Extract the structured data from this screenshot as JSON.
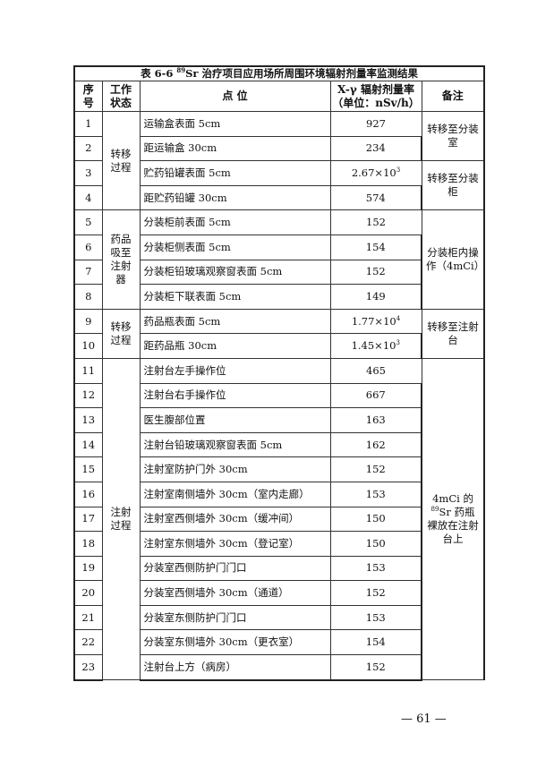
{
  "table": {
    "title_prefix": "表 6-6 ",
    "title_sup": "89",
    "title_rest": "Sr 治疗项目应用场所周围环境辐射剂量率监测结果",
    "headers": {
      "no": "序号",
      "status": "工作状态",
      "point": "点 位",
      "rate_line1": "X-γ 辐射剂量率",
      "rate_line2": "（单位：nSv/h）",
      "remark": "备注"
    },
    "rows": [
      {
        "no": "1",
        "point": "运输盒表面 5cm",
        "value": "927"
      },
      {
        "no": "2",
        "point": "距运输盒 30cm",
        "value": "234"
      },
      {
        "no": "3",
        "point": "贮药铅罐表面 5cm",
        "value": "2.67×10",
        "exp": "3"
      },
      {
        "no": "4",
        "point": "距贮药铅罐 30cm",
        "value": "574"
      },
      {
        "no": "5",
        "point": "分装柜前表面 5cm",
        "value": "152"
      },
      {
        "no": "6",
        "point": "分装柜侧表面 5cm",
        "value": "154"
      },
      {
        "no": "7",
        "point": "分装柜铅玻璃观察窗表面 5cm",
        "value": "152"
      },
      {
        "no": "8",
        "point": "分装柜下联表面 5cm",
        "value": "149"
      },
      {
        "no": "9",
        "point": "药品瓶表面 5cm",
        "value": "1.77×10",
        "exp": "4"
      },
      {
        "no": "10",
        "point": "距药品瓶 30cm",
        "value": "1.45×10",
        "exp": "3"
      },
      {
        "no": "11",
        "point": "注射台左手操作位",
        "value": "465"
      },
      {
        "no": "12",
        "point": "注射台右手操作位",
        "value": "667"
      },
      {
        "no": "13",
        "point": "医生腹部位置",
        "value": "163"
      },
      {
        "no": "14",
        "point": "注射台铅玻璃观察窗表面 5cm",
        "value": "162"
      },
      {
        "no": "15",
        "point": "注射室防护门外 30cm",
        "value": "152"
      },
      {
        "no": "16",
        "point": "注射室南侧墙外 30cm（室内走廊）",
        "value": "153"
      },
      {
        "no": "17",
        "point": "注射室西侧墙外 30cm（缓冲间）",
        "value": "150"
      },
      {
        "no": "18",
        "point": "注射室东侧墙外 30cm（登记室）",
        "value": "150"
      },
      {
        "no": "19",
        "point": "分装室西侧防护门门口",
        "value": "153"
      },
      {
        "no": "20",
        "point": "分装室西侧墙外 30cm（通道）",
        "value": "152"
      },
      {
        "no": "21",
        "point": "分装室东侧防护门门口",
        "value": "153"
      },
      {
        "no": "22",
        "point": "分装室东侧墙外 30cm（更衣室）",
        "value": "154"
      },
      {
        "no": "23",
        "point": "注射台上方（病房）",
        "value": "152"
      }
    ],
    "status_groups": [
      {
        "start": 0,
        "span": 4,
        "label": "转移过程"
      },
      {
        "start": 4,
        "span": 4,
        "label": "药品吸至注射器"
      },
      {
        "start": 8,
        "span": 2,
        "label": "转移过程"
      },
      {
        "start": 10,
        "span": 13,
        "label": "注射过程"
      }
    ],
    "remark_groups": [
      {
        "start": 0,
        "span": 2,
        "label": "转移至分装室"
      },
      {
        "start": 2,
        "span": 2,
        "label": "转移至分装柜"
      },
      {
        "start": 4,
        "span": 4,
        "label": "分装柜内操作（4mCi）"
      },
      {
        "start": 8,
        "span": 2,
        "label": "转移至注射台"
      },
      {
        "start": 10,
        "span": 13,
        "label_pre": "4mCi 的",
        "label_sup": "89",
        "label_post": "Sr 药瓶裸放在注射台上"
      }
    ]
  },
  "page_number": "— 61 —"
}
